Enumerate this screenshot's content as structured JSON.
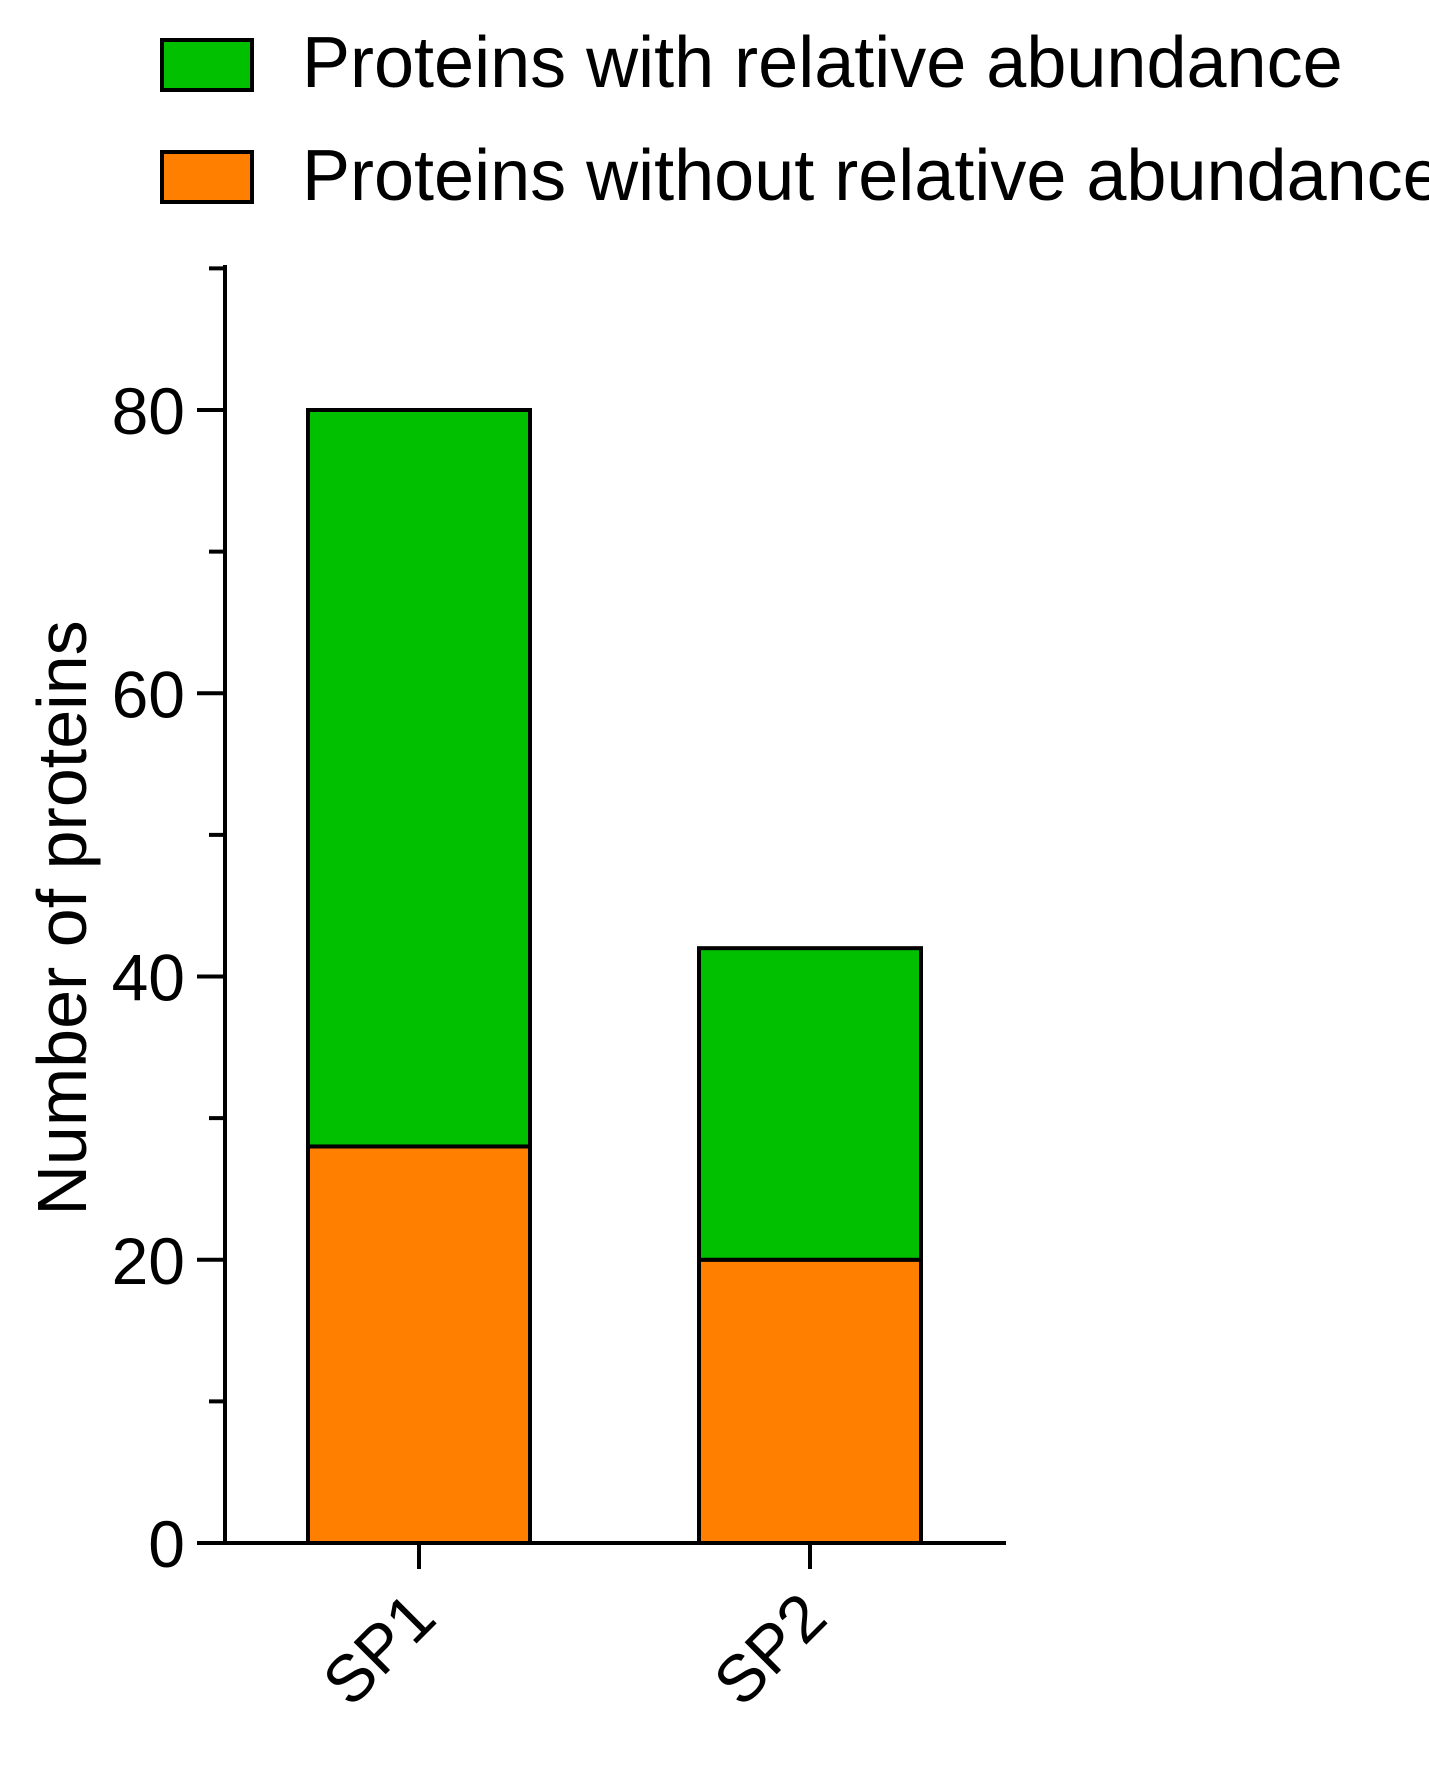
{
  "legend": {
    "items": [
      {
        "label": "Proteins with relative abundance",
        "color": "#00c000"
      },
      {
        "label": "Proteins without relative abundance",
        "color": "#ff8000"
      }
    ],
    "placement": "top-left"
  },
  "chart_data": {
    "type": "bar",
    "stacked": true,
    "categories": [
      "SP1",
      "SP2"
    ],
    "series": [
      {
        "name": "Proteins without relative abundance",
        "values": [
          28,
          20
        ],
        "color": "#ff8000"
      },
      {
        "name": "Proteins with relative abundance",
        "values": [
          52,
          22
        ],
        "color": "#00c000"
      }
    ],
    "totals": [
      80,
      42
    ],
    "title": "",
    "xlabel": "",
    "ylabel": "Number of proteins",
    "ylim": [
      0,
      90
    ],
    "yticks": [
      0,
      20,
      40,
      60,
      80
    ],
    "yminor_ticks": [
      10,
      30,
      50,
      70
    ],
    "ytick_labels": [
      "0",
      "20",
      "40",
      "60",
      "80"
    ],
    "grid": false
  }
}
